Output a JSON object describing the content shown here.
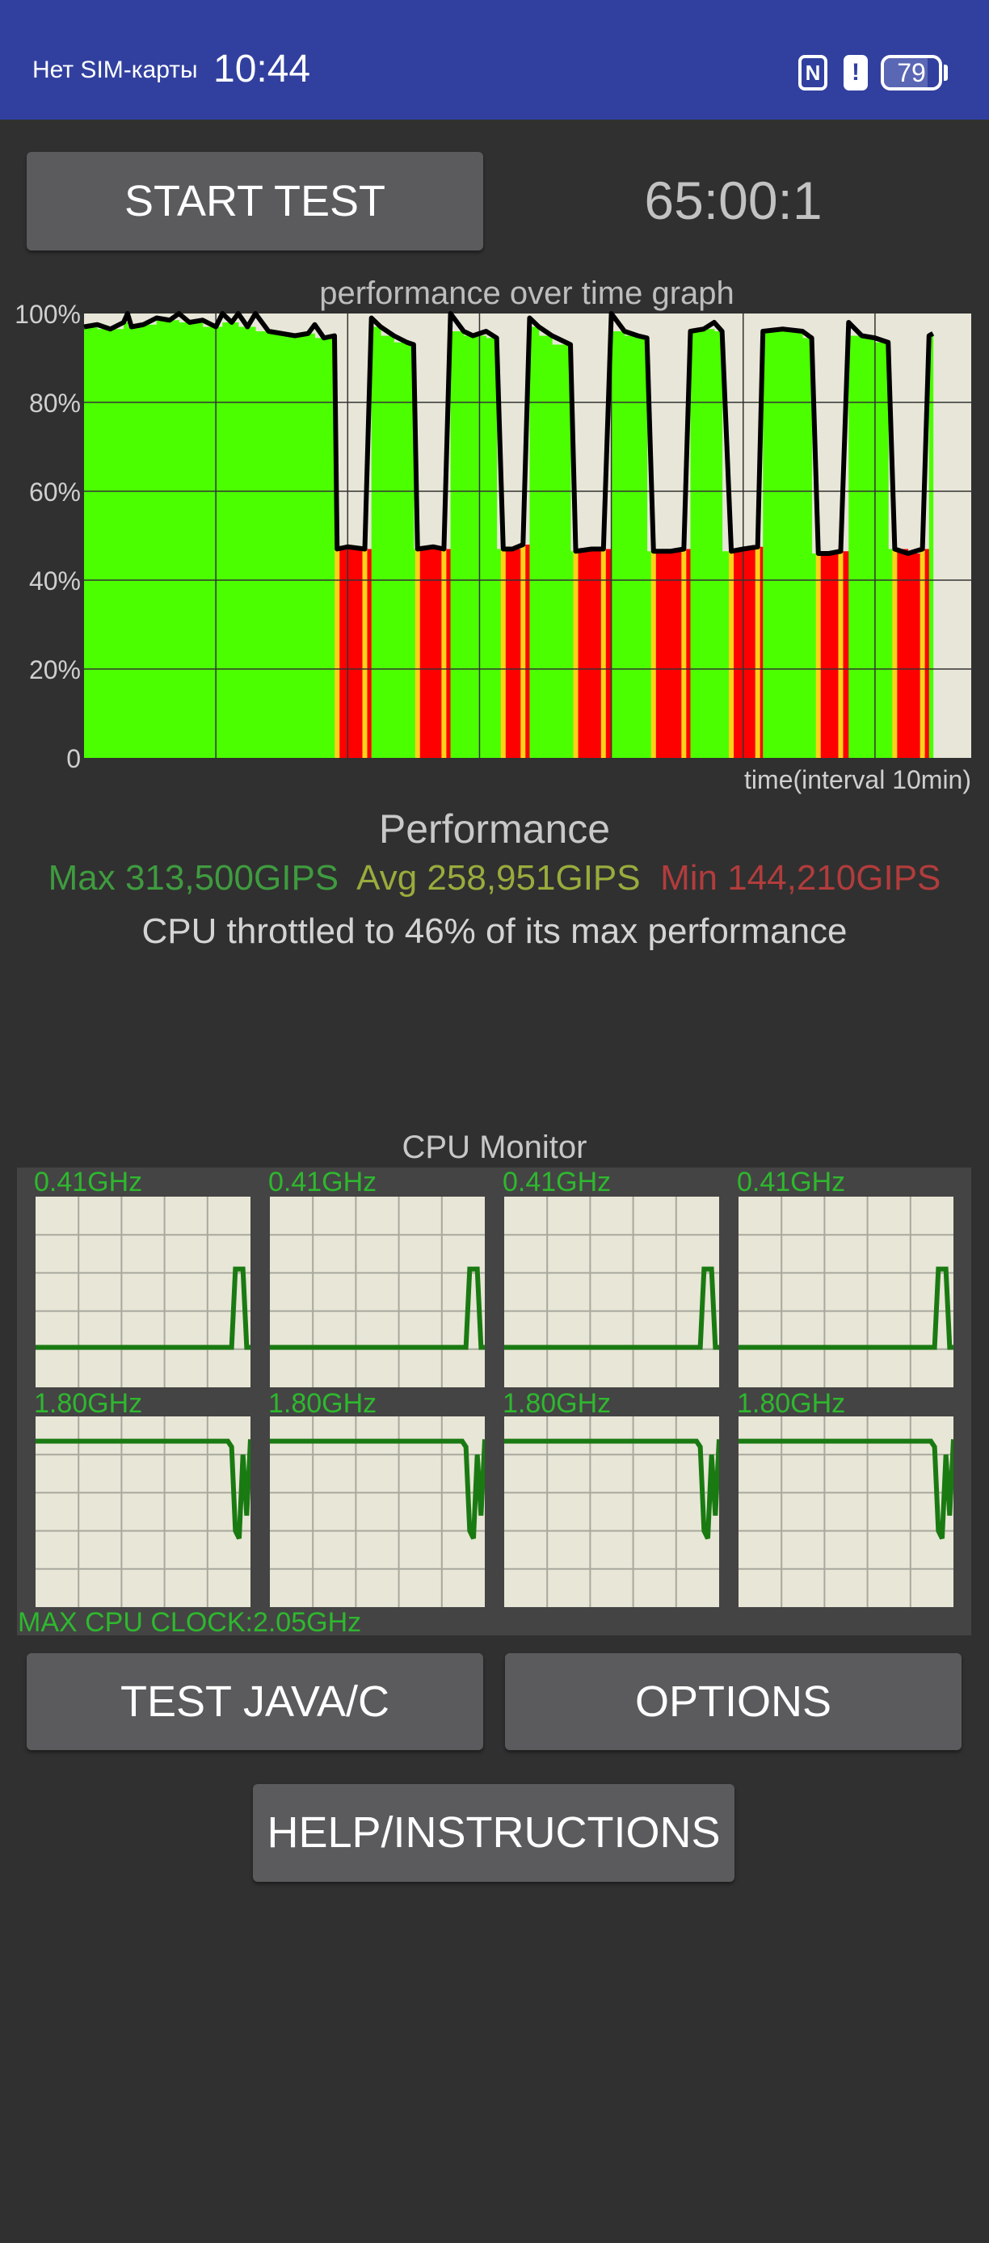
{
  "status_bar": {
    "carrier": "Нет SIM-карты",
    "time": "10:44",
    "nfc_icon": "N",
    "alert_icon": "!",
    "battery_level": "79",
    "color": "#31409f"
  },
  "controls": {
    "start_label": "START TEST",
    "timer": "65:00:1",
    "test_java_label": "TEST JAVA/C",
    "options_label": "OPTIONS",
    "help_label": "HELP/INSTRUCTIONS"
  },
  "chart_data": [
    {
      "type": "area",
      "title": "performance over time graph",
      "xlabel": "time(interval 10min)",
      "ylabel": "",
      "xlim": [
        0,
        67.3
      ],
      "ylim": [
        0,
        100
      ],
      "x_grid_interval": 10,
      "y_ticks": [
        0,
        20,
        40,
        60,
        80,
        100
      ],
      "y_tick_labels": [
        "0",
        "20%",
        "40%",
        "60%",
        "80%",
        "100%"
      ],
      "grid": true,
      "colors": {
        "high": "#4cff00",
        "low": "#ff0000",
        "line": "#000000",
        "background": "#e8e6d8"
      },
      "points": [
        [
          0,
          97
        ],
        [
          1,
          97.5
        ],
        [
          2,
          96.5
        ],
        [
          3,
          98
        ],
        [
          3.3,
          100
        ],
        [
          3.6,
          97
        ],
        [
          4.5,
          97.5
        ],
        [
          5.5,
          99
        ],
        [
          6.5,
          98.5
        ],
        [
          7.2,
          100
        ],
        [
          8,
          98
        ],
        [
          9,
          98.5
        ],
        [
          10,
          97
        ],
        [
          10.5,
          100
        ],
        [
          11.2,
          98
        ],
        [
          11.7,
          100
        ],
        [
          12.4,
          97
        ],
        [
          13,
          100
        ],
        [
          14,
          96
        ],
        [
          15,
          95.5
        ],
        [
          16,
          95
        ],
        [
          17,
          95.5
        ],
        [
          17.5,
          97.5
        ],
        [
          18.2,
          94.5
        ],
        [
          19,
          95
        ],
        [
          19.2,
          47
        ],
        [
          20,
          47.5
        ],
        [
          21.3,
          47
        ],
        [
          21.8,
          99
        ],
        [
          22.5,
          97
        ],
        [
          23.5,
          95
        ],
        [
          24.5,
          93.5
        ],
        [
          25,
          93
        ],
        [
          25.3,
          47
        ],
        [
          26.5,
          47.5
        ],
        [
          27.3,
          47
        ],
        [
          27.8,
          100
        ],
        [
          28.8,
          96
        ],
        [
          29.5,
          95
        ],
        [
          30.5,
          96
        ],
        [
          31.3,
          94.5
        ],
        [
          31.8,
          47
        ],
        [
          32.5,
          47
        ],
        [
          33.3,
          48
        ],
        [
          33.8,
          99
        ],
        [
          34.5,
          97
        ],
        [
          35.5,
          95
        ],
        [
          36.9,
          93
        ],
        [
          37.3,
          46.5
        ],
        [
          38.5,
          47
        ],
        [
          39.4,
          47
        ],
        [
          40.0,
          100
        ],
        [
          41,
          96
        ],
        [
          42,
          95
        ],
        [
          42.7,
          94.5
        ],
        [
          43.2,
          46.5
        ],
        [
          44.5,
          46.5
        ],
        [
          45.5,
          47
        ],
        [
          46.0,
          96
        ],
        [
          47,
          96.5
        ],
        [
          47.8,
          98
        ],
        [
          48.4,
          96
        ],
        [
          49.1,
          46.5
        ],
        [
          50,
          47
        ],
        [
          51.1,
          47.5
        ],
        [
          51.5,
          96
        ],
        [
          53,
          96.5
        ],
        [
          54.5,
          96
        ],
        [
          55.2,
          94.5
        ],
        [
          55.7,
          46
        ],
        [
          56.5,
          46
        ],
        [
          57.4,
          46.5
        ],
        [
          58.0,
          98
        ],
        [
          59,
          95
        ],
        [
          60,
          94.5
        ],
        [
          61.0,
          93.5
        ],
        [
          61.5,
          47
        ],
        [
          62.5,
          46
        ],
        [
          63.6,
          47
        ],
        [
          64.1,
          95
        ],
        [
          64.4,
          95.5
        ]
      ]
    },
    {
      "type": "line",
      "title": "CPU Monitor",
      "max_clock_label": "MAX CPU CLOCK:2.05GHz",
      "grid": true,
      "colors": {
        "line": "#1a7a12",
        "label": "#2eb82e",
        "background": "#e8e6d6"
      },
      "cores": [
        {
          "label": "0.41GHz",
          "levels": [
            0.21,
            0.21,
            0.21,
            0.21,
            0.21,
            0.21,
            0.21,
            0.21,
            0.21,
            0.21,
            0.21,
            0.21,
            0.21,
            0.21,
            0.21,
            0.21,
            0.21,
            0.21,
            0.21,
            0.21,
            0.21,
            0.21,
            0.21,
            0.21,
            0.21,
            0.21,
            0.21,
            0.21,
            0.21,
            0.21,
            0.21,
            0.21,
            0.21,
            0.21,
            0.21,
            0.21,
            0.21,
            0.21,
            0.21,
            0.21,
            0.21,
            0.21,
            0.21,
            0.21,
            0.21,
            0.21,
            0.21,
            0.21,
            0.21,
            0.21,
            0.21,
            0.21,
            0.21,
            0.62,
            0.62,
            0.62,
            0.21,
            0.21
          ]
        },
        {
          "label": "0.41GHz",
          "levels": [
            0.21,
            0.21,
            0.21,
            0.21,
            0.21,
            0.21,
            0.21,
            0.21,
            0.21,
            0.21,
            0.21,
            0.21,
            0.21,
            0.21,
            0.21,
            0.21,
            0.21,
            0.21,
            0.21,
            0.21,
            0.21,
            0.21,
            0.21,
            0.21,
            0.21,
            0.21,
            0.21,
            0.21,
            0.21,
            0.21,
            0.21,
            0.21,
            0.21,
            0.21,
            0.21,
            0.21,
            0.21,
            0.21,
            0.21,
            0.21,
            0.21,
            0.21,
            0.21,
            0.21,
            0.21,
            0.21,
            0.21,
            0.21,
            0.21,
            0.21,
            0.21,
            0.21,
            0.21,
            0.62,
            0.62,
            0.62,
            0.21,
            0.21
          ]
        },
        {
          "label": "0.41GHz",
          "levels": [
            0.21,
            0.21,
            0.21,
            0.21,
            0.21,
            0.21,
            0.21,
            0.21,
            0.21,
            0.21,
            0.21,
            0.21,
            0.21,
            0.21,
            0.21,
            0.21,
            0.21,
            0.21,
            0.21,
            0.21,
            0.21,
            0.21,
            0.21,
            0.21,
            0.21,
            0.21,
            0.21,
            0.21,
            0.21,
            0.21,
            0.21,
            0.21,
            0.21,
            0.21,
            0.21,
            0.21,
            0.21,
            0.21,
            0.21,
            0.21,
            0.21,
            0.21,
            0.21,
            0.21,
            0.21,
            0.21,
            0.21,
            0.21,
            0.21,
            0.21,
            0.21,
            0.21,
            0.21,
            0.62,
            0.62,
            0.62,
            0.21,
            0.21
          ]
        },
        {
          "label": "0.41GHz",
          "levels": [
            0.21,
            0.21,
            0.21,
            0.21,
            0.21,
            0.21,
            0.21,
            0.21,
            0.21,
            0.21,
            0.21,
            0.21,
            0.21,
            0.21,
            0.21,
            0.21,
            0.21,
            0.21,
            0.21,
            0.21,
            0.21,
            0.21,
            0.21,
            0.21,
            0.21,
            0.21,
            0.21,
            0.21,
            0.21,
            0.21,
            0.21,
            0.21,
            0.21,
            0.21,
            0.21,
            0.21,
            0.21,
            0.21,
            0.21,
            0.21,
            0.21,
            0.21,
            0.21,
            0.21,
            0.21,
            0.21,
            0.21,
            0.21,
            0.21,
            0.21,
            0.21,
            0.21,
            0.21,
            0.62,
            0.62,
            0.62,
            0.21,
            0.21
          ]
        },
        {
          "label": "1.80GHz",
          "levels": [
            0.87,
            0.87,
            0.87,
            0.87,
            0.87,
            0.87,
            0.87,
            0.87,
            0.87,
            0.87,
            0.87,
            0.87,
            0.87,
            0.87,
            0.87,
            0.87,
            0.87,
            0.87,
            0.87,
            0.87,
            0.87,
            0.87,
            0.87,
            0.87,
            0.87,
            0.87,
            0.87,
            0.87,
            0.87,
            0.87,
            0.87,
            0.87,
            0.87,
            0.87,
            0.87,
            0.87,
            0.87,
            0.87,
            0.87,
            0.87,
            0.87,
            0.87,
            0.87,
            0.87,
            0.87,
            0.87,
            0.87,
            0.87,
            0.87,
            0.87,
            0.87,
            0.87,
            0.84,
            0.4,
            0.36,
            0.8,
            0.48,
            0.88
          ]
        },
        {
          "label": "1.80GHz",
          "levels": [
            0.87,
            0.87,
            0.87,
            0.87,
            0.87,
            0.87,
            0.87,
            0.87,
            0.87,
            0.87,
            0.87,
            0.87,
            0.87,
            0.87,
            0.87,
            0.87,
            0.87,
            0.87,
            0.87,
            0.87,
            0.87,
            0.87,
            0.87,
            0.87,
            0.87,
            0.87,
            0.87,
            0.87,
            0.87,
            0.87,
            0.87,
            0.87,
            0.87,
            0.87,
            0.87,
            0.87,
            0.87,
            0.87,
            0.87,
            0.87,
            0.87,
            0.87,
            0.87,
            0.87,
            0.87,
            0.87,
            0.87,
            0.87,
            0.87,
            0.87,
            0.87,
            0.87,
            0.84,
            0.4,
            0.36,
            0.8,
            0.48,
            0.88
          ]
        },
        {
          "label": "1.80GHz",
          "levels": [
            0.87,
            0.87,
            0.87,
            0.87,
            0.87,
            0.87,
            0.87,
            0.87,
            0.87,
            0.87,
            0.87,
            0.87,
            0.87,
            0.87,
            0.87,
            0.87,
            0.87,
            0.87,
            0.87,
            0.87,
            0.87,
            0.87,
            0.87,
            0.87,
            0.87,
            0.87,
            0.87,
            0.87,
            0.87,
            0.87,
            0.87,
            0.87,
            0.87,
            0.87,
            0.87,
            0.87,
            0.87,
            0.87,
            0.87,
            0.87,
            0.87,
            0.87,
            0.87,
            0.87,
            0.87,
            0.87,
            0.87,
            0.87,
            0.87,
            0.87,
            0.87,
            0.87,
            0.84,
            0.4,
            0.36,
            0.8,
            0.48,
            0.88
          ]
        },
        {
          "label": "1.80GHz",
          "levels": [
            0.87,
            0.87,
            0.87,
            0.87,
            0.87,
            0.87,
            0.87,
            0.87,
            0.87,
            0.87,
            0.87,
            0.87,
            0.87,
            0.87,
            0.87,
            0.87,
            0.87,
            0.87,
            0.87,
            0.87,
            0.87,
            0.87,
            0.87,
            0.87,
            0.87,
            0.87,
            0.87,
            0.87,
            0.87,
            0.87,
            0.87,
            0.87,
            0.87,
            0.87,
            0.87,
            0.87,
            0.87,
            0.87,
            0.87,
            0.87,
            0.87,
            0.87,
            0.87,
            0.87,
            0.87,
            0.87,
            0.87,
            0.87,
            0.87,
            0.87,
            0.87,
            0.87,
            0.84,
            0.4,
            0.36,
            0.8,
            0.48,
            0.88
          ]
        }
      ]
    }
  ],
  "performance": {
    "title": "Performance",
    "max": "Max 313,500GIPS",
    "avg": "Avg 258,951GIPS",
    "min": "Min 144,210GIPS",
    "max_color": "#3f9b3f",
    "avg_color": "#9aab3c",
    "min_color": "#b23c3c",
    "throttle_text": "CPU throttled to 46% of its max performance"
  }
}
